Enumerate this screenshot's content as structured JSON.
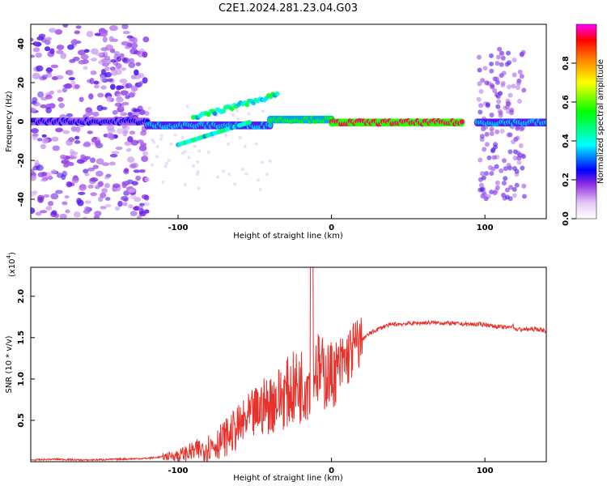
{
  "title": "C2E1.2024.281.23.04.G03",
  "chart_data": [
    {
      "type": "heatmap",
      "xlabel": "Height of straight line (km)",
      "ylabel": "Frequency (Hz)",
      "xlim": [
        -196,
        140
      ],
      "ylim": [
        -50,
        50
      ],
      "xticks": [
        -100,
        0,
        100
      ],
      "yticks": [
        -40,
        -20,
        0,
        20,
        40
      ],
      "colorbar": {
        "label": "Normalized spectral amplitude",
        "ticks": [
          0.0,
          0.2,
          0.4,
          0.6,
          0.8
        ],
        "range": [
          0,
          1
        ]
      },
      "features": [
        {
          "x": [
            -196,
            -120
          ],
          "y": [
            -2,
            2
          ],
          "amplitude": 0.25
        },
        {
          "x": [
            -120,
            -40
          ],
          "y": [
            -12,
            8
          ],
          "amplitude": 0.35
        },
        {
          "x": [
            -40,
            0
          ],
          "y": [
            -2,
            4
          ],
          "amplitude": 0.55
        },
        {
          "x": [
            0,
            85
          ],
          "y": [
            -2,
            1
          ],
          "amplitude": 0.95
        },
        {
          "x": [
            95,
            140
          ],
          "y": [
            -2,
            1
          ],
          "amplitude": 0.35
        }
      ]
    },
    {
      "type": "line",
      "xlabel": "Height of straight line (km)",
      "ylabel": "SNR (10 * v/v)",
      "yunit": "(x10",
      "yunit_exp": "4",
      "yunit_close": ")",
      "xlim": [
        -196,
        140
      ],
      "ylim": [
        0,
        2.35
      ],
      "xticks": [
        -100,
        0,
        100
      ],
      "yticks": [
        0.5,
        1.0,
        1.5,
        2.0
      ],
      "yticklabels": [
        "0.5",
        "1.0",
        "1.5",
        "2.0"
      ],
      "color": "#e8312b",
      "series": [
        {
          "x": [
            -196,
            -180,
            -160,
            -140,
            -120,
            -110,
            -100,
            -95,
            -90,
            -85,
            -80,
            -75,
            -70,
            -65,
            -60,
            -55,
            -50,
            -45,
            -40,
            -35,
            -30,
            -25,
            -20,
            -15,
            -12,
            -10,
            -8,
            -5,
            0,
            5,
            10,
            15,
            20,
            25,
            30,
            35,
            40,
            50,
            60,
            70,
            80,
            90,
            100,
            105,
            110,
            115,
            118,
            120,
            125,
            130,
            135,
            140
          ],
          "y": [
            0.02,
            0.03,
            0.02,
            0.03,
            0.04,
            0.06,
            0.08,
            0.1,
            0.12,
            0.15,
            0.18,
            0.22,
            0.28,
            0.35,
            0.42,
            0.5,
            0.58,
            0.66,
            0.7,
            0.76,
            0.82,
            0.88,
            0.92,
            1.0,
            1.1,
            1.15,
            1.1,
            1.05,
            1.05,
            1.12,
            1.25,
            1.38,
            1.48,
            1.55,
            1.6,
            1.64,
            1.66,
            1.67,
            1.68,
            1.68,
            1.67,
            1.66,
            1.66,
            1.64,
            1.63,
            1.62,
            1.65,
            1.6,
            1.6,
            1.6,
            1.6,
            1.58
          ]
        }
      ]
    }
  ]
}
